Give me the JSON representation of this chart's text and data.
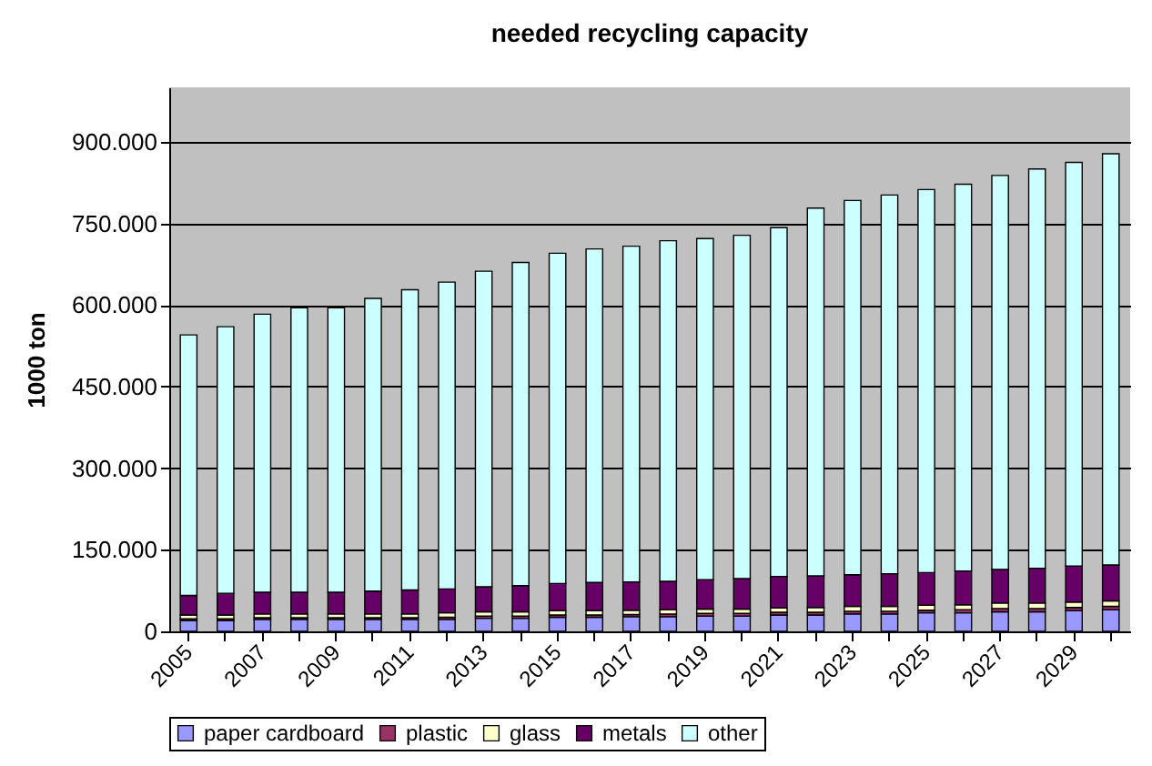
{
  "chart_data": {
    "type": "bar",
    "title": "needed recycling capacity",
    "ylabel": "1000 ton",
    "categories": [
      "2005",
      null,
      "2007",
      null,
      "2009",
      null,
      "2011",
      null,
      "2013",
      null,
      "2015",
      null,
      "2017",
      null,
      "2019",
      null,
      "2021",
      null,
      "2023",
      null,
      "2025",
      null,
      "2027",
      null,
      "2029",
      null
    ],
    "stacked": true,
    "series": [
      {
        "name": "paper cardboard",
        "color": "#9999ff",
        "values": [
          20000,
          20000,
          22000,
          22000,
          22000,
          22000,
          22000,
          22000,
          24000,
          24000,
          26000,
          26000,
          27000,
          27000,
          28000,
          28000,
          30000,
          30000,
          32000,
          32000,
          34000,
          34000,
          36000,
          36000,
          38000,
          40000
        ]
      },
      {
        "name": "plastic",
        "color": "#993366",
        "values": [
          3000,
          3000,
          3000,
          3000,
          3000,
          3000,
          3000,
          4000,
          4000,
          4000,
          4000,
          4000,
          4000,
          5000,
          5000,
          5000,
          5000,
          5000,
          5000,
          5000,
          5000,
          6000,
          6000,
          6000,
          6000,
          6000
        ]
      },
      {
        "name": "glass",
        "color": "#ffffcc",
        "values": [
          7000,
          7000,
          7000,
          7000,
          7000,
          7000,
          7000,
          8000,
          8000,
          8000,
          8000,
          8000,
          8000,
          8000,
          8000,
          8000,
          8000,
          9000,
          9000,
          9000,
          9000,
          9000,
          10000,
          10000,
          10000,
          10000
        ]
      },
      {
        "name": "metals",
        "color": "#660066",
        "values": [
          36000,
          40000,
          40000,
          40000,
          40000,
          42000,
          44000,
          44000,
          46000,
          48000,
          50000,
          52000,
          52000,
          52000,
          54000,
          56000,
          58000,
          58000,
          58000,
          60000,
          60000,
          62000,
          62000,
          64000,
          66000,
          66000
        ]
      },
      {
        "name": "other",
        "color": "#ccffff",
        "values": [
          479000,
          490000,
          511000,
          523000,
          523000,
          538000,
          552000,
          564000,
          580000,
          594000,
          607000,
          613000,
          617000,
          626000,
          627000,
          631000,
          641000,
          676000,
          688000,
          696000,
          704000,
          711000,
          724000,
          734000,
          742000,
          756000
        ]
      }
    ],
    "ylim": [
      0,
      1000000
    ],
    "yticks": [
      {
        "value": 0,
        "label": "0"
      },
      {
        "value": 150000,
        "label": "150.000"
      },
      {
        "value": 300000,
        "label": "300.000"
      },
      {
        "value": 450000,
        "label": "450.000"
      },
      {
        "value": 600000,
        "label": "600.000"
      },
      {
        "value": 750000,
        "label": "750.000"
      },
      {
        "value": 900000,
        "label": "900.000"
      }
    ],
    "grid": "y",
    "legend": "bottom"
  }
}
